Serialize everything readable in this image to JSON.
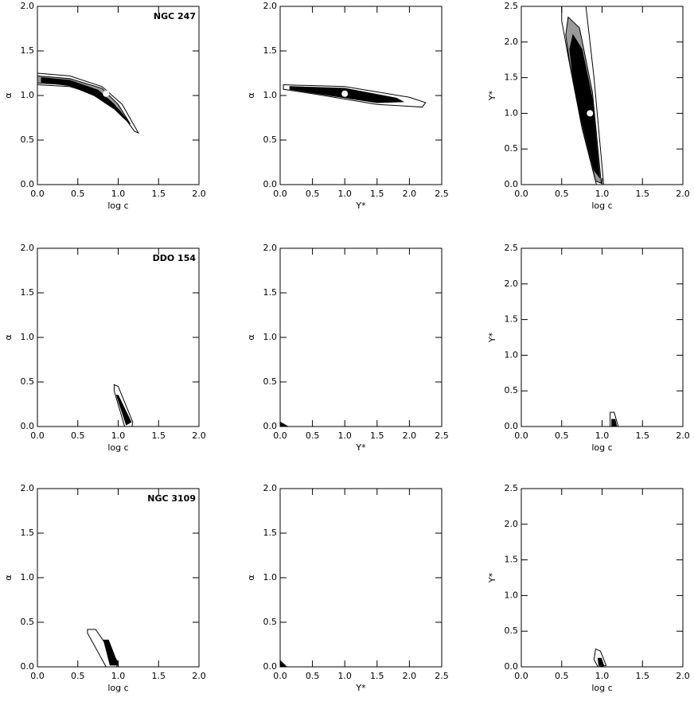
{
  "chart_data": [
    {
      "type": "contour",
      "annotation": "NGC 247",
      "x_label": "log c",
      "y_label": "α",
      "xlim": [
        0,
        2
      ],
      "ylim": [
        0,
        2
      ],
      "xticks": [
        {
          "value": 0,
          "label": "0.0"
        },
        {
          "value": 0.5,
          "label": "0.5"
        },
        {
          "value": 1,
          "label": "1.0"
        },
        {
          "value": 1.5,
          "label": "1.5"
        },
        {
          "value": 2,
          "label": "2.0"
        }
      ],
      "yticks": [
        {
          "value": 0,
          "label": "0.0"
        },
        {
          "value": 0.5,
          "label": "0.5"
        },
        {
          "value": 1,
          "label": "1.0"
        },
        {
          "value": 1.5,
          "label": "1.5"
        },
        {
          "value": 2,
          "label": "2.0"
        }
      ],
      "contours": [
        {
          "color": "#ffffff",
          "x": [
            0,
            0.4,
            0.8,
            1.05,
            1.25,
            1.2,
            1.0,
            0.7,
            0.4,
            0
          ],
          "y": [
            1.25,
            1.22,
            1.1,
            0.9,
            0.58,
            0.6,
            0.85,
            1.02,
            1.1,
            1.12
          ]
        },
        {
          "color": "#999999",
          "x": [
            0,
            0.4,
            0.8,
            1.0,
            1.15,
            1.0,
            0.7,
            0.4,
            0
          ],
          "y": [
            1.22,
            1.19,
            1.08,
            0.9,
            0.68,
            0.85,
            1.03,
            1.12,
            1.14
          ]
        },
        {
          "color": "#000000",
          "x": [
            0.05,
            0.4,
            0.75,
            0.95,
            1.1,
            0.95,
            0.7,
            0.4,
            0.05
          ],
          "y": [
            1.2,
            1.17,
            1.06,
            0.9,
            0.72,
            0.85,
            1.0,
            1.11,
            1.15
          ]
        }
      ],
      "points": {
        "color": "#ffffff",
        "x": [
          0.85
        ],
        "y": [
          1.02
        ]
      }
    },
    {
      "type": "contour",
      "x_label": "Υ*",
      "y_label": "α",
      "xlim": [
        0,
        2.5
      ],
      "ylim": [
        0,
        2
      ],
      "xticks": [
        {
          "value": 0,
          "label": "0.0"
        },
        {
          "value": 0.5,
          "label": "0.5"
        },
        {
          "value": 1,
          "label": "1.0"
        },
        {
          "value": 1.5,
          "label": "1.5"
        },
        {
          "value": 2,
          "label": "2.0"
        },
        {
          "value": 2.5,
          "label": "2.5"
        }
      ],
      "yticks": [
        {
          "value": 0,
          "label": "0.0"
        },
        {
          "value": 0.5,
          "label": "0.5"
        },
        {
          "value": 1,
          "label": "1.0"
        },
        {
          "value": 1.5,
          "label": "1.5"
        },
        {
          "value": 2,
          "label": "2.0"
        }
      ],
      "contours": [
        {
          "color": "#ffffff",
          "x": [
            0.05,
            1,
            2,
            2.25,
            2.2,
            1.5,
            0.5,
            0.05
          ],
          "y": [
            1.12,
            1.1,
            0.98,
            0.92,
            0.87,
            0.9,
            1.02,
            1.07
          ]
        },
        {
          "color": "#000000",
          "x": [
            0.15,
            1,
            1.8,
            1.9,
            1.5,
            0.5,
            0.15
          ],
          "y": [
            1.1,
            1.08,
            0.97,
            0.93,
            0.92,
            1.03,
            1.07
          ]
        }
      ],
      "points": {
        "color": "#ffffff",
        "x": [
          1.0
        ],
        "y": [
          1.02
        ]
      }
    },
    {
      "type": "contour",
      "x_label": "log c",
      "y_label": "Υ*",
      "xlim": [
        0,
        2
      ],
      "ylim": [
        0,
        2.5
      ],
      "xticks": [
        {
          "value": 0,
          "label": "0.0"
        },
        {
          "value": 0.5,
          "label": "0.5"
        },
        {
          "value": 1,
          "label": "1.0"
        },
        {
          "value": 1.5,
          "label": "1.5"
        },
        {
          "value": 2,
          "label": "2.0"
        }
      ],
      "yticks": [
        {
          "value": 0,
          "label": "0.0"
        },
        {
          "value": 0.5,
          "label": "0.5"
        },
        {
          "value": 1,
          "label": "1.0"
        },
        {
          "value": 1.5,
          "label": "1.5"
        },
        {
          "value": 2,
          "label": "2.0"
        },
        {
          "value": 2.5,
          "label": "2.5"
        }
      ],
      "contours": [
        {
          "color": "#ffffff",
          "x": [
            0.5,
            0.8,
            0.9,
            1.02,
            0.93,
            0.75,
            0.58,
            0.5
          ],
          "y": [
            2.5,
            2.5,
            1.5,
            0,
            0,
            0.8,
            1.8,
            2.3
          ]
        },
        {
          "color": "#999999",
          "x": [
            0.58,
            0.72,
            0.88,
            0.99,
            0.92,
            0.75,
            0.6,
            0.55
          ],
          "y": [
            2.35,
            2.2,
            1.3,
            0.02,
            0.05,
            0.85,
            1.7,
            2.1
          ]
        },
        {
          "color": "#000000",
          "x": [
            0.64,
            0.75,
            0.88,
            0.97,
            0.9,
            0.75,
            0.64,
            0.6
          ],
          "y": [
            2.1,
            1.9,
            1.2,
            0.1,
            0.2,
            0.9,
            1.5,
            1.9
          ]
        }
      ],
      "points": {
        "color": "#ffffff",
        "x": [
          0.85
        ],
        "y": [
          1.0
        ]
      }
    },
    {
      "type": "contour",
      "annotation": "DDO 154",
      "x_label": "log c",
      "y_label": "α",
      "xlim": [
        0,
        2
      ],
      "ylim": [
        0,
        2
      ],
      "xticks": [
        {
          "value": 0,
          "label": "0.0"
        },
        {
          "value": 0.5,
          "label": "0.5"
        },
        {
          "value": 1,
          "label": "1.0"
        },
        {
          "value": 1.5,
          "label": "1.5"
        },
        {
          "value": 2,
          "label": "2.0"
        }
      ],
      "yticks": [
        {
          "value": 0,
          "label": "0.0"
        },
        {
          "value": 0.5,
          "label": "0.5"
        },
        {
          "value": 1,
          "label": "1.0"
        },
        {
          "value": 1.5,
          "label": "1.5"
        },
        {
          "value": 2,
          "label": "2.0"
        }
      ],
      "contours": [
        {
          "color": "#ffffff",
          "x": [
            0.95,
            1.0,
            1.18,
            1.17,
            1.08,
            0.95
          ],
          "y": [
            0.47,
            0.45,
            0.05,
            0,
            0,
            0.4
          ]
        },
        {
          "color": "#000000",
          "x": [
            1.0,
            1.16,
            1.1,
            0.98
          ],
          "y": [
            0.35,
            0.05,
            0.02,
            0.35
          ]
        }
      ]
    },
    {
      "type": "contour",
      "x_label": "Υ*",
      "y_label": "α",
      "xlim": [
        0,
        2.5
      ],
      "ylim": [
        0,
        2
      ],
      "xticks": [
        {
          "value": 0,
          "label": "0.0"
        },
        {
          "value": 0.5,
          "label": "0.5"
        },
        {
          "value": 1,
          "label": "1.0"
        },
        {
          "value": 1.5,
          "label": "1.5"
        },
        {
          "value": 2,
          "label": "2.0"
        },
        {
          "value": 2.5,
          "label": "2.5"
        }
      ],
      "yticks": [
        {
          "value": 0,
          "label": "0.0"
        },
        {
          "value": 0.5,
          "label": "0.5"
        },
        {
          "value": 1,
          "label": "1.0"
        },
        {
          "value": 1.5,
          "label": "1.5"
        },
        {
          "value": 2,
          "label": "2.0"
        }
      ],
      "contours": [
        {
          "color": "#000000",
          "x": [
            0,
            0.05,
            0.12,
            0
          ],
          "y": [
            0.05,
            0.03,
            0,
            0
          ]
        }
      ]
    },
    {
      "type": "contour",
      "x_label": "log c",
      "y_label": "Υ*",
      "xlim": [
        0,
        2
      ],
      "ylim": [
        0,
        2.5
      ],
      "xticks": [
        {
          "value": 0,
          "label": "0.0"
        },
        {
          "value": 0.5,
          "label": "0.5"
        },
        {
          "value": 1,
          "label": "1.0"
        },
        {
          "value": 1.5,
          "label": "1.5"
        },
        {
          "value": 2,
          "label": "2.0"
        }
      ],
      "yticks": [
        {
          "value": 0,
          "label": "0.0"
        },
        {
          "value": 0.5,
          "label": "0.5"
        },
        {
          "value": 1,
          "label": "1.0"
        },
        {
          "value": 1.5,
          "label": "1.5"
        },
        {
          "value": 2,
          "label": "2.0"
        },
        {
          "value": 2.5,
          "label": "2.5"
        }
      ],
      "contours": [
        {
          "color": "#ffffff",
          "x": [
            1.1,
            1.15,
            1.2,
            1.1
          ],
          "y": [
            0.2,
            0.2,
            0,
            0
          ]
        },
        {
          "color": "#000000",
          "x": [
            1.12,
            1.16,
            1.18,
            1.12
          ],
          "y": [
            0.1,
            0.1,
            0,
            0
          ]
        }
      ]
    },
    {
      "type": "contour",
      "annotation": "NGC 3109",
      "x_label": "log c",
      "y_label": "α",
      "xlim": [
        0,
        2
      ],
      "ylim": [
        0,
        2
      ],
      "xticks": [
        {
          "value": 0,
          "label": "0.0"
        },
        {
          "value": 0.5,
          "label": "0.5"
        },
        {
          "value": 1,
          "label": "1.0"
        },
        {
          "value": 1.5,
          "label": "1.5"
        },
        {
          "value": 2,
          "label": "2.0"
        }
      ],
      "yticks": [
        {
          "value": 0,
          "label": "0.0"
        },
        {
          "value": 0.5,
          "label": "0.5"
        },
        {
          "value": 1,
          "label": "1.0"
        },
        {
          "value": 1.5,
          "label": "1.5"
        },
        {
          "value": 2,
          "label": "2.0"
        }
      ],
      "contours": [
        {
          "color": "#ffffff",
          "x": [
            0.62,
            0.72,
            1.0,
            0.98,
            0.85,
            0.62
          ],
          "y": [
            0.42,
            0.42,
            0.05,
            0,
            0,
            0.38
          ]
        },
        {
          "color": "#000000",
          "x": [
            0.82,
            0.88,
            1.0,
            0.9
          ],
          "y": [
            0.3,
            0.3,
            0.02,
            0.02
          ]
        }
      ]
    },
    {
      "type": "contour",
      "x_label": "Υ*",
      "y_label": "α",
      "xlim": [
        0,
        2.5
      ],
      "ylim": [
        0,
        2
      ],
      "xticks": [
        {
          "value": 0,
          "label": "0.0"
        },
        {
          "value": 0.5,
          "label": "0.5"
        },
        {
          "value": 1,
          "label": "1.0"
        },
        {
          "value": 1.5,
          "label": "1.5"
        },
        {
          "value": 2,
          "label": "2.0"
        },
        {
          "value": 2.5,
          "label": "2.5"
        }
      ],
      "yticks": [
        {
          "value": 0,
          "label": "0.0"
        },
        {
          "value": 0.5,
          "label": "0.5"
        },
        {
          "value": 1,
          "label": "1.0"
        },
        {
          "value": 1.5,
          "label": "1.5"
        },
        {
          "value": 2,
          "label": "2.0"
        }
      ],
      "contours": [
        {
          "color": "#000000",
          "x": [
            0,
            0.1,
            0
          ],
          "y": [
            0.07,
            0,
            0
          ]
        }
      ]
    },
    {
      "type": "contour",
      "x_label": "log c",
      "y_label": "Υ*",
      "xlim": [
        0,
        2
      ],
      "ylim": [
        0,
        2.5
      ],
      "xticks": [
        {
          "value": 0,
          "label": "0.0"
        },
        {
          "value": 0.5,
          "label": "0.5"
        },
        {
          "value": 1,
          "label": "1.0"
        },
        {
          "value": 1.5,
          "label": "1.5"
        },
        {
          "value": 2,
          "label": "2.0"
        }
      ],
      "yticks": [
        {
          "value": 0,
          "label": "0.0"
        },
        {
          "value": 0.5,
          "label": "0.5"
        },
        {
          "value": 1,
          "label": "1.0"
        },
        {
          "value": 1.5,
          "label": "1.5"
        },
        {
          "value": 2,
          "label": "2.0"
        },
        {
          "value": 2.5,
          "label": "2.5"
        }
      ],
      "contours": [
        {
          "color": "#ffffff",
          "x": [
            0.92,
            0.98,
            1.05,
            0.95,
            0.9
          ],
          "y": [
            0.25,
            0.22,
            0.02,
            0,
            0.1
          ]
        },
        {
          "color": "#000000",
          "x": [
            0.95,
            0.99,
            1.02,
            0.96
          ],
          "y": [
            0.12,
            0.12,
            0.02,
            0.02
          ]
        }
      ]
    }
  ]
}
